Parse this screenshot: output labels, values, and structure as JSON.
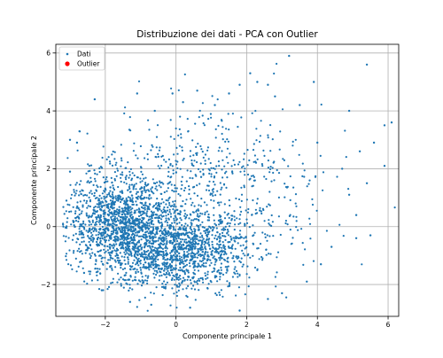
{
  "chart_data": {
    "type": "scatter",
    "title": "Distribuzione dei dati - PCA con Outlier",
    "xlabel": "Componente principale 1",
    "ylabel": "Componente principale 2",
    "xlim": [
      -3.4,
      6.3
    ],
    "ylim": [
      -3.1,
      6.3
    ],
    "xticks": [
      -2,
      0,
      2,
      4,
      6
    ],
    "yticks": [
      -2,
      0,
      2,
      4,
      6
    ],
    "grid": true,
    "legend_position": "upper-left",
    "series": [
      {
        "name": "Dati",
        "color": "#1f77b4",
        "marker": "small-dot",
        "points": [
          [
            3.2,
            5.9
          ],
          [
            5.4,
            5.6
          ],
          [
            2.1,
            5.3
          ],
          [
            2.3,
            5.0
          ],
          [
            1.8,
            4.9
          ],
          [
            2.6,
            4.9
          ],
          [
            3.9,
            5.0
          ],
          [
            0.6,
            4.7
          ],
          [
            -0.1,
            4.6
          ],
          [
            -1.1,
            4.6
          ],
          [
            3.5,
            4.2
          ],
          [
            4.9,
            4.0
          ],
          [
            6.1,
            3.6
          ],
          [
            5.9,
            3.5
          ],
          [
            5.6,
            2.9
          ],
          [
            5.2,
            2.6
          ],
          [
            4.7,
            2.0
          ],
          [
            5.4,
            1.5
          ],
          [
            4.9,
            1.1
          ],
          [
            5.1,
            0.4
          ],
          [
            5.5,
            -0.3
          ],
          [
            5.9,
            2.1
          ],
          [
            -3.0,
            3.0
          ],
          [
            -2.8,
            2.9
          ],
          [
            -2.3,
            4.4
          ],
          [
            1.1,
            4.2
          ],
          [
            0.2,
            4.3
          ],
          [
            1.5,
            4.6
          ],
          [
            2.8,
            4.5
          ],
          [
            -0.6,
            4.0
          ],
          [
            3.0,
            -2.3
          ],
          [
            2.6,
            -2.5
          ],
          [
            1.8,
            -2.9
          ],
          [
            0.4,
            -2.8
          ],
          [
            -0.7,
            -2.7
          ],
          [
            -1.3,
            -2.6
          ],
          [
            -2.1,
            -2.2
          ],
          [
            -2.6,
            -1.6
          ],
          [
            3.7,
            -1.9
          ],
          [
            4.1,
            -1.3
          ],
          [
            4.4,
            -0.7
          ],
          [
            -3.1,
            0.9
          ],
          [
            -3.0,
            1.9
          ],
          [
            5.1,
            -0.4
          ],
          [
            4.0,
            2.9
          ]
        ]
      },
      {
        "name": "Outlier",
        "color": "#ff0000",
        "marker": "dot",
        "points": []
      }
    ]
  }
}
